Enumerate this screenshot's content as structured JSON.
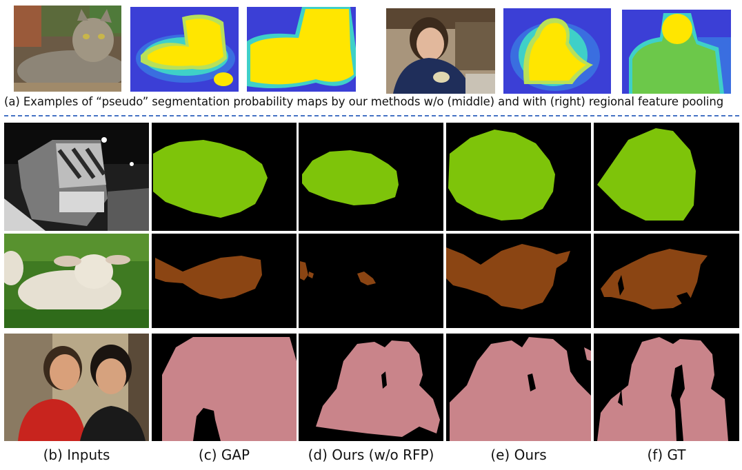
{
  "figure": {
    "caption_a": "(a) Examples of “pseudo” segmentation probability maps by our methods w/o (middle) and with (right) regional feature pooling",
    "column_labels": [
      "(b) Inputs",
      "(c) GAP",
      "(d) Ours (w/o RFP)",
      "(e) Ours",
      "(f) GT"
    ],
    "mask_colors": {
      "train": "#7ec40a",
      "sheep": "#8b4513",
      "person": "#c9848a",
      "background": "#000000"
    },
    "heatmap_colors": {
      "low": "#3b3fd6",
      "mid": "#3fd0c8",
      "high": "#ffe600",
      "mid_green": "#6cc84a"
    }
  }
}
